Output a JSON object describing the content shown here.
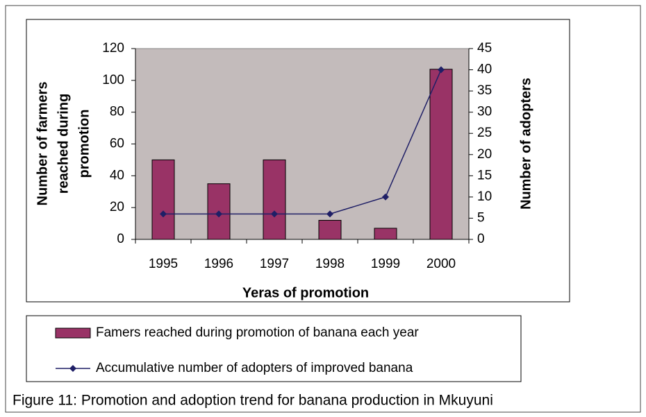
{
  "chart_data": {
    "type": "bar_line",
    "xlabel": "Yeras of promotion",
    "ylabel": [
      "Number of farmers",
      "reached during",
      "promotion"
    ],
    "y2label": "Number of adopters",
    "categories": [
      "1995",
      "1996",
      "1997",
      "1998",
      "1999",
      "2000"
    ],
    "series": [
      {
        "name": "Famers reached during promotion of banana each year",
        "type": "bar",
        "color": "#993366",
        "values": [
          50,
          35,
          50,
          12,
          7,
          107
        ]
      },
      {
        "name": "Accumulative number of adopters of improved banana",
        "type": "line",
        "axis": "y2",
        "color": "#1f1f66",
        "values": [
          6,
          6,
          6,
          6,
          10,
          40
        ]
      }
    ],
    "ylim": [
      0,
      120
    ],
    "yticks": [
      0,
      20,
      40,
      60,
      80,
      100,
      120
    ],
    "y2lim": [
      0,
      45
    ],
    "y2ticks": [
      0,
      5,
      10,
      15,
      20,
      25,
      30,
      35,
      40,
      45
    ],
    "plot_color": "#c3bbbb",
    "legend": "bottom"
  },
  "caption": "Figure 11: Promotion and adoption trend for banana production in Mkuyuni"
}
